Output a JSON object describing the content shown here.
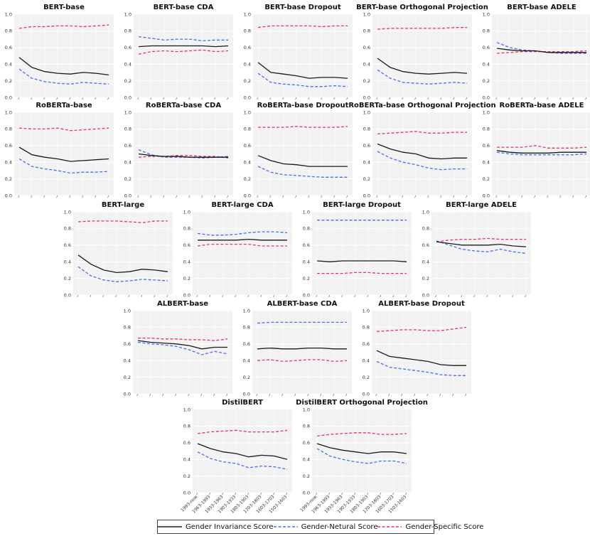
{
  "colors": {
    "invariance": "#1a1a1a",
    "neutral": "#4a6cf0",
    "specific": "#e8336b",
    "panel_bg": "#f2f2f2",
    "grid": "#ffffff"
  },
  "legend": {
    "invariance": "Gender Invariance Score",
    "neutral": "Gender-Netural Score",
    "specific": "Gender-Specific Score"
  },
  "chart_data": {
    "type": "line",
    "shared_x_categories": [
      "1993-now",
      "1963-1993",
      "1933-1963",
      "1903-1933",
      "1803-1903",
      "1703-1803",
      "1603-1703",
      "1503-1603"
    ],
    "y_ticks": [
      "0.0",
      "0.2",
      "0.4",
      "0.6",
      "0.8",
      "1.0"
    ],
    "ylim": [
      0,
      1
    ],
    "series_names": [
      "Gender Invariance Score",
      "Gender-Netural Score",
      "Gender-Specific Score"
    ],
    "panels": [
      {
        "title": "BERT-base",
        "invariance": [
          0.48,
          0.36,
          0.31,
          0.29,
          0.28,
          0.3,
          0.29,
          0.27
        ],
        "neutral": [
          0.34,
          0.23,
          0.19,
          0.17,
          0.16,
          0.18,
          0.17,
          0.16
        ],
        "specific": [
          0.83,
          0.85,
          0.85,
          0.86,
          0.86,
          0.85,
          0.86,
          0.87
        ]
      },
      {
        "title": "BERT-base CDA",
        "invariance": [
          0.61,
          0.62,
          0.62,
          0.62,
          0.62,
          0.62,
          0.61,
          0.62
        ],
        "neutral": [
          0.73,
          0.71,
          0.69,
          0.7,
          0.7,
          0.68,
          0.69,
          0.69
        ],
        "specific": [
          0.52,
          0.55,
          0.56,
          0.55,
          0.56,
          0.57,
          0.55,
          0.56
        ]
      },
      {
        "title": "BERT-base Dropout",
        "invariance": [
          0.42,
          0.3,
          0.28,
          0.26,
          0.23,
          0.24,
          0.24,
          0.23
        ],
        "neutral": [
          0.29,
          0.18,
          0.16,
          0.15,
          0.13,
          0.13,
          0.14,
          0.13
        ],
        "specific": [
          0.84,
          0.86,
          0.86,
          0.86,
          0.86,
          0.85,
          0.86,
          0.86
        ]
      },
      {
        "title": "BERT-base Orthogonal Projection",
        "invariance": [
          0.47,
          0.36,
          0.31,
          0.29,
          0.28,
          0.29,
          0.3,
          0.29
        ],
        "neutral": [
          0.33,
          0.23,
          0.18,
          0.17,
          0.16,
          0.17,
          0.18,
          0.17
        ],
        "specific": [
          0.82,
          0.83,
          0.83,
          0.83,
          0.83,
          0.83,
          0.84,
          0.84
        ]
      },
      {
        "title": "BERT-base ADELE",
        "invariance": [
          0.59,
          0.57,
          0.56,
          0.56,
          0.54,
          0.54,
          0.54,
          0.54
        ],
        "neutral": [
          0.66,
          0.6,
          0.57,
          0.56,
          0.54,
          0.53,
          0.53,
          0.53
        ],
        "specific": [
          0.53,
          0.54,
          0.55,
          0.55,
          0.55,
          0.55,
          0.55,
          0.56
        ]
      },
      {
        "title": "RoBERTa-base",
        "invariance": [
          0.58,
          0.49,
          0.46,
          0.44,
          0.41,
          0.42,
          0.43,
          0.44
        ],
        "neutral": [
          0.44,
          0.35,
          0.32,
          0.3,
          0.27,
          0.28,
          0.28,
          0.29
        ],
        "specific": [
          0.81,
          0.8,
          0.8,
          0.81,
          0.78,
          0.79,
          0.8,
          0.81
        ]
      },
      {
        "title": "RoBERTa-base CDA",
        "invariance": [
          0.5,
          0.48,
          0.47,
          0.47,
          0.46,
          0.46,
          0.46,
          0.46
        ],
        "neutral": [
          0.55,
          0.49,
          0.46,
          0.46,
          0.46,
          0.45,
          0.46,
          0.47
        ],
        "specific": [
          0.46,
          0.47,
          0.47,
          0.48,
          0.48,
          0.47,
          0.47,
          0.45
        ]
      },
      {
        "title": "RoBERTa-base Dropout",
        "invariance": [
          0.48,
          0.42,
          0.38,
          0.37,
          0.35,
          0.35,
          0.35,
          0.35
        ],
        "neutral": [
          0.35,
          0.28,
          0.25,
          0.24,
          0.23,
          0.22,
          0.22,
          0.22
        ],
        "specific": [
          0.82,
          0.82,
          0.82,
          0.83,
          0.82,
          0.82,
          0.82,
          0.83
        ]
      },
      {
        "title": "RoBERTa-base Orthogonal Projection",
        "invariance": [
          0.62,
          0.56,
          0.52,
          0.5,
          0.45,
          0.44,
          0.45,
          0.45
        ],
        "neutral": [
          0.53,
          0.45,
          0.4,
          0.37,
          0.33,
          0.31,
          0.32,
          0.32
        ],
        "specific": [
          0.74,
          0.75,
          0.76,
          0.77,
          0.75,
          0.75,
          0.76,
          0.76
        ]
      },
      {
        "title": "RoBERTa-base ADELE",
        "invariance": [
          0.54,
          0.52,
          0.51,
          0.51,
          0.51,
          0.52,
          0.52,
          0.52
        ],
        "neutral": [
          0.52,
          0.5,
          0.49,
          0.49,
          0.49,
          0.49,
          0.49,
          0.5
        ],
        "specific": [
          0.58,
          0.58,
          0.58,
          0.6,
          0.57,
          0.57,
          0.57,
          0.58
        ]
      },
      {
        "title": "BERT-large",
        "invariance": [
          0.48,
          0.37,
          0.3,
          0.27,
          0.28,
          0.31,
          0.3,
          0.28
        ],
        "neutral": [
          0.34,
          0.23,
          0.18,
          0.16,
          0.17,
          0.19,
          0.18,
          0.17
        ],
        "specific": [
          0.88,
          0.89,
          0.89,
          0.89,
          0.88,
          0.87,
          0.89,
          0.89
        ]
      },
      {
        "title": "BERT-large CDA",
        "invariance": [
          0.66,
          0.66,
          0.66,
          0.66,
          0.67,
          0.66,
          0.66,
          0.66
        ],
        "neutral": [
          0.74,
          0.72,
          0.72,
          0.73,
          0.75,
          0.76,
          0.76,
          0.75
        ],
        "specific": [
          0.59,
          0.61,
          0.61,
          0.61,
          0.61,
          0.59,
          0.59,
          0.59
        ]
      },
      {
        "title": "BERT-large Dropout",
        "invariance": [
          0.41,
          0.4,
          0.41,
          0.41,
          0.41,
          0.41,
          0.41,
          0.4
        ],
        "neutral": [
          0.9,
          0.9,
          0.9,
          0.9,
          0.9,
          0.9,
          0.9,
          0.9
        ],
        "specific": [
          0.26,
          0.26,
          0.26,
          0.27,
          0.27,
          0.26,
          0.26,
          0.26
        ]
      },
      {
        "title": "BERT-large ADELE",
        "invariance": [
          0.64,
          0.62,
          0.6,
          0.6,
          0.6,
          0.61,
          0.59,
          0.58
        ],
        "neutral": [
          0.65,
          0.6,
          0.55,
          0.53,
          0.52,
          0.55,
          0.52,
          0.5
        ],
        "specific": [
          0.64,
          0.66,
          0.67,
          0.67,
          0.68,
          0.67,
          0.67,
          0.67
        ]
      },
      {
        "title": "ALBERT-base",
        "invariance": [
          0.64,
          0.62,
          0.61,
          0.6,
          0.58,
          0.54,
          0.56,
          0.56
        ],
        "neutral": [
          0.62,
          0.6,
          0.59,
          0.57,
          0.53,
          0.47,
          0.51,
          0.48
        ],
        "specific": [
          0.67,
          0.67,
          0.66,
          0.66,
          0.65,
          0.65,
          0.64,
          0.66
        ]
      },
      {
        "title": "ALBERT-base CDA",
        "invariance": [
          0.54,
          0.55,
          0.54,
          0.54,
          0.55,
          0.55,
          0.54,
          0.54
        ],
        "neutral": [
          0.85,
          0.86,
          0.86,
          0.86,
          0.86,
          0.86,
          0.86,
          0.86
        ],
        "specific": [
          0.4,
          0.41,
          0.39,
          0.4,
          0.41,
          0.41,
          0.39,
          0.4
        ]
      },
      {
        "title": "ALBERT-base Dropout",
        "invariance": [
          0.52,
          0.45,
          0.43,
          0.41,
          0.39,
          0.35,
          0.34,
          0.34
        ],
        "neutral": [
          0.39,
          0.32,
          0.3,
          0.28,
          0.26,
          0.23,
          0.22,
          0.22
        ],
        "specific": [
          0.75,
          0.76,
          0.77,
          0.77,
          0.76,
          0.76,
          0.78,
          0.8
        ]
      },
      {
        "title": "DistilBERT",
        "invariance": [
          0.59,
          0.53,
          0.49,
          0.47,
          0.43,
          0.45,
          0.44,
          0.4
        ],
        "neutral": [
          0.49,
          0.41,
          0.37,
          0.35,
          0.3,
          0.32,
          0.31,
          0.28
        ],
        "specific": [
          0.71,
          0.73,
          0.74,
          0.75,
          0.73,
          0.73,
          0.73,
          0.75
        ]
      },
      {
        "title": "DistilBERT Orthogonal Projection",
        "invariance": [
          0.59,
          0.54,
          0.51,
          0.49,
          0.47,
          0.49,
          0.49,
          0.47
        ],
        "neutral": [
          0.53,
          0.44,
          0.4,
          0.37,
          0.35,
          0.38,
          0.38,
          0.35
        ],
        "specific": [
          0.68,
          0.7,
          0.71,
          0.72,
          0.72,
          0.7,
          0.7,
          0.71
        ]
      }
    ]
  }
}
